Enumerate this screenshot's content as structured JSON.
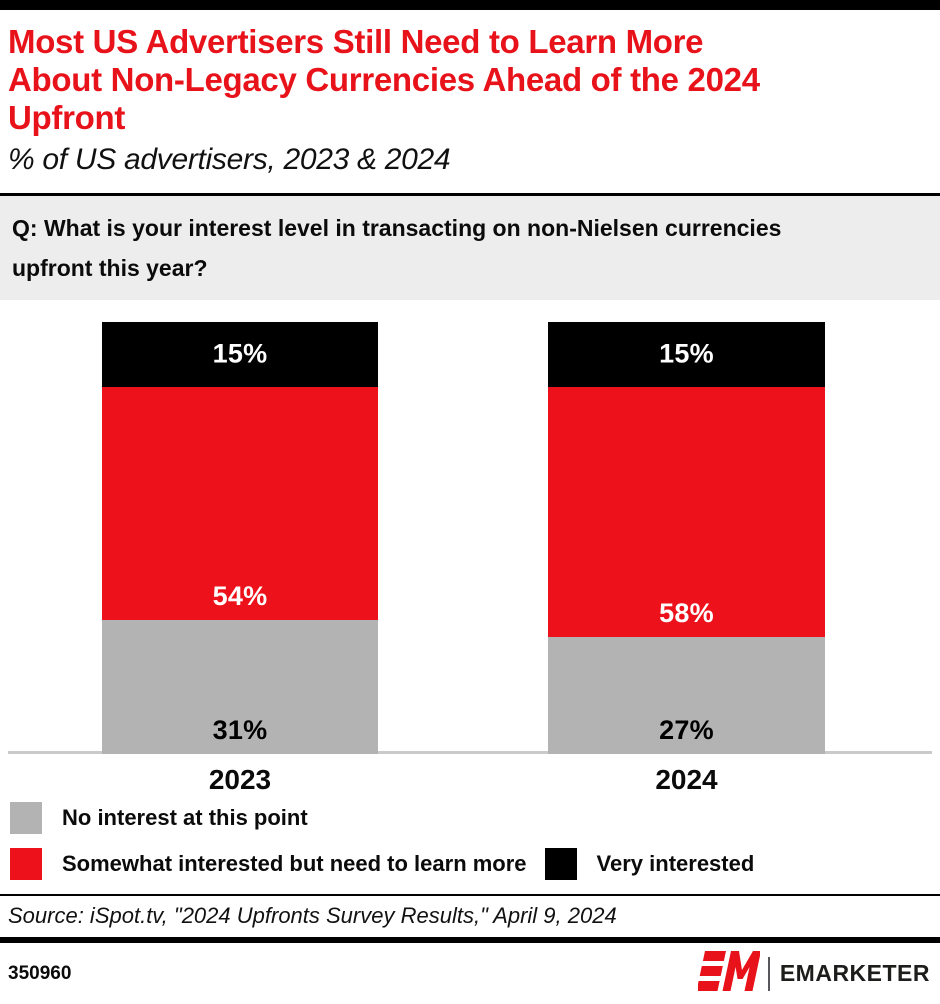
{
  "colors": {
    "brand_red": "#E8121A",
    "bar_red": "#EC111A",
    "bar_gray": "#B3B3B3",
    "bar_black": "#000000",
    "question_bg": "#EDEDED",
    "baseline_gray": "#CACACA",
    "logo_text": "#1D1D1B"
  },
  "header": {
    "title_lines": [
      "Most US Advertisers Still Need to Learn More",
      "About Non-Legacy Currencies Ahead of the 2024",
      "Upfront"
    ],
    "subtitle": "% of US advertisers, 2023 & 2024"
  },
  "question_lines": [
    "Q: What is your interest level in transacting on non-Nielsen currencies",
    "upfront this year?"
  ],
  "chart_data": {
    "type": "bar",
    "stacked": true,
    "orientation": "vertical",
    "title": "Most US Advertisers Still Need to Learn More About Non-Legacy Currencies Ahead of the 2024 Upfront",
    "subtitle": "% of US advertisers, 2023 & 2024",
    "categories": [
      "2023",
      "2024"
    ],
    "series": [
      {
        "name": "No interest at this point",
        "color": "#B3B3B3",
        "label_color": "#000000",
        "values": [
          31,
          27
        ]
      },
      {
        "name": "Somewhat interested but need to learn more",
        "color": "#EC111A",
        "label_color": "#FFFFFF",
        "values": [
          54,
          58
        ]
      },
      {
        "name": "Very interested",
        "color": "#000000",
        "label_color": "#FFFFFF",
        "values": [
          15,
          15
        ]
      }
    ],
    "value_suffix": "%",
    "ylim": [
      0,
      100
    ],
    "grid": false,
    "legend_position": "bottom-left"
  },
  "source": "Source: iSpot.tv, \"2024 Upfronts Survey Results,\" April 9, 2024",
  "footer": {
    "chart_id": "350960",
    "brand_name": "EMARKETER"
  }
}
